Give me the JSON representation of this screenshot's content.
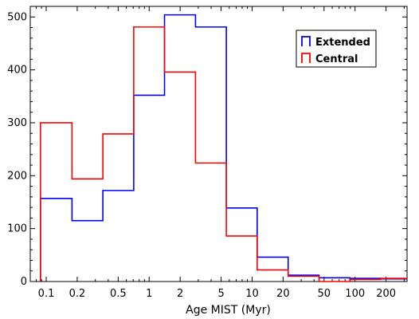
{
  "chart_data": {
    "type": "histogram-step",
    "title": "",
    "xlabel": "Age MIST (Myr)",
    "ylabel": "",
    "x_scale": "log",
    "xlim": [
      0.07,
      320
    ],
    "ylim": [
      0,
      520
    ],
    "x_ticks": [
      0.1,
      0.2,
      0.5,
      1,
      2,
      5,
      10,
      20,
      50,
      100,
      200
    ],
    "x_tick_labels": [
      "0.1",
      "0.2",
      "0.5",
      "1",
      "2",
      "5",
      "10",
      "20",
      "50",
      "100",
      "200"
    ],
    "y_ticks": [
      0,
      100,
      200,
      300,
      400,
      500
    ],
    "y_tick_labels": [
      "0",
      "100",
      "200",
      "300",
      "400",
      "500"
    ],
    "bin_edges": [
      0.088,
      0.178,
      0.355,
      0.708,
      1.41,
      2.82,
      5.62,
      11.2,
      22.4,
      44.7,
      89.1,
      178,
      320
    ],
    "grid": false,
    "legend_position": "top-right",
    "series": [
      {
        "name": "Extended",
        "color": "#0000ff",
        "values": [
          157,
          115,
          172,
          352,
          504,
          481,
          139,
          46,
          12,
          7,
          6,
          5
        ]
      },
      {
        "name": "Central",
        "color": "#ff0000",
        "values": [
          300,
          194,
          279,
          481,
          396,
          224,
          86,
          22,
          10,
          0,
          4,
          6
        ]
      }
    ]
  }
}
